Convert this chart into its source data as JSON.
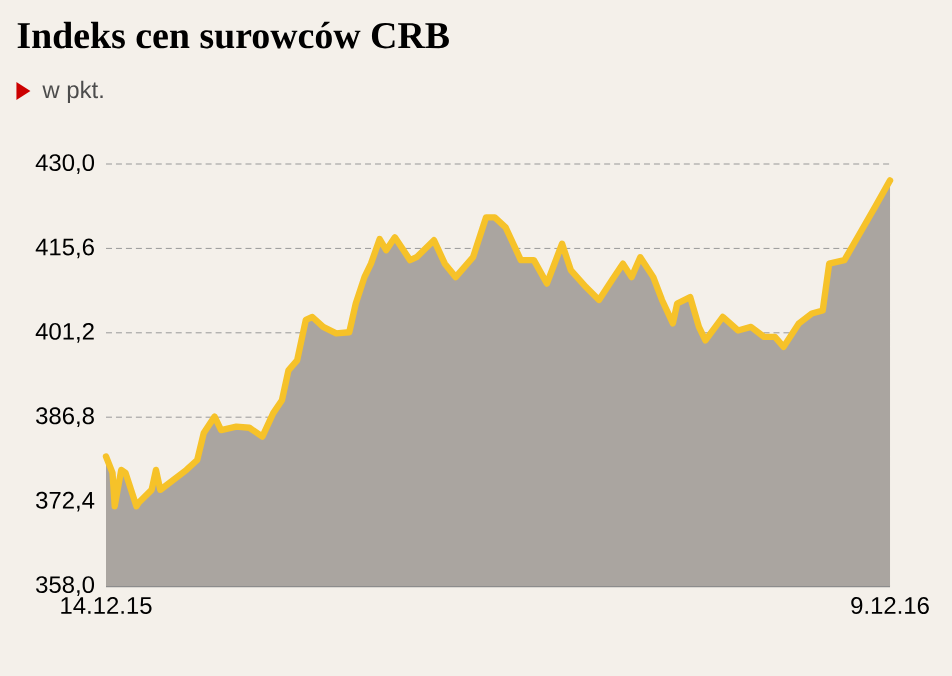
{
  "chart_data": {
    "type": "area",
    "title": "Indeks cen surowców CRB",
    "subtitle": "w pkt.",
    "x": [
      "2015-12-14",
      "2015-12-17",
      "2015-12-18",
      "2015-12-21",
      "2015-12-23",
      "2015-12-28",
      "2015-12-29",
      "2016-01-04",
      "2016-01-06",
      "2016-01-08",
      "2016-01-14",
      "2016-01-20",
      "2016-01-25",
      "2016-01-28",
      "2016-02-02",
      "2016-02-05",
      "2016-02-12",
      "2016-02-18",
      "2016-02-24",
      "2016-02-29",
      "2016-03-04",
      "2016-03-07",
      "2016-03-11",
      "2016-03-15",
      "2016-03-18",
      "2016-03-23",
      "2016-03-29",
      "2016-04-04",
      "2016-04-07",
      "2016-04-11",
      "2016-04-14",
      "2016-04-18",
      "2016-04-21",
      "2016-04-25",
      "2016-05-02",
      "2016-05-05",
      "2016-05-13",
      "2016-05-18",
      "2016-05-23",
      "2016-05-31",
      "2016-06-06",
      "2016-06-10",
      "2016-06-15",
      "2016-06-22",
      "2016-06-28",
      "2016-07-04",
      "2016-07-11",
      "2016-07-15",
      "2016-07-22",
      "2016-07-28",
      "2016-08-03",
      "2016-08-08",
      "2016-08-12",
      "2016-08-16",
      "2016-08-22",
      "2016-08-26",
      "2016-08-31",
      "2016-09-02",
      "2016-09-08",
      "2016-09-12",
      "2016-09-15",
      "2016-09-23",
      "2016-09-30",
      "2016-10-06",
      "2016-10-12",
      "2016-10-17",
      "2016-10-21",
      "2016-10-28",
      "2016-11-03",
      "2016-11-08",
      "2016-11-11",
      "2016-11-18",
      "2016-11-25",
      "2016-12-02",
      "2016-12-09"
    ],
    "series": [
      {
        "color": "#f6c229",
        "values": [
          380.1,
          377.3,
          371.6,
          377.8,
          377.3,
          371.6,
          372.2,
          374.4,
          377.8,
          374.4,
          376.1,
          377.8,
          379.5,
          384.1,
          386.9,
          384.6,
          385.2,
          385.0,
          383.5,
          387.5,
          389.7,
          394.8,
          396.5,
          403.4,
          403.9,
          402.2,
          401.1,
          401.3,
          406.2,
          410.7,
          413.0,
          417.2,
          415.3,
          417.5,
          413.6,
          414.1,
          417.0,
          413.0,
          410.7,
          414.1,
          420.9,
          420.9,
          419.2,
          413.6,
          413.6,
          409.6,
          416.4,
          411.9,
          409.0,
          406.8,
          410.2,
          413.0,
          410.7,
          414.1,
          410.7,
          406.8,
          402.8,
          406.2,
          407.3,
          402.2,
          399.9,
          403.9,
          401.6,
          402.2,
          400.5,
          400.5,
          398.8,
          402.8,
          404.5,
          405.0,
          413.0,
          413.6,
          418.1,
          422.6,
          427.2
        ]
      }
    ],
    "xlim": [
      "2015-12-14",
      "2016-12-09"
    ],
    "xticks": [
      {
        "value": "2015-12-14",
        "label": "14.12.15"
      },
      {
        "value": "2016-12-09",
        "label": "9.12.16"
      }
    ],
    "ylim": [
      358.0,
      430.0
    ],
    "yticks": [
      {
        "value": 358.0,
        "label": "358,0"
      },
      {
        "value": 372.4,
        "label": "372,4"
      },
      {
        "value": 386.8,
        "label": "386,8"
      },
      {
        "value": 401.2,
        "label": "401,2"
      },
      {
        "value": 415.6,
        "label": "415,6"
      },
      {
        "value": 430.0,
        "label": "430,0"
      }
    ],
    "grid": "y"
  }
}
